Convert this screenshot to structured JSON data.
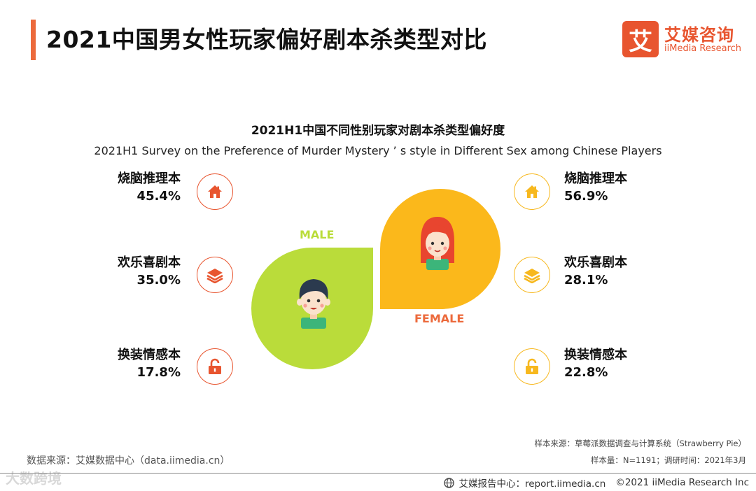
{
  "header": {
    "title": "2021中国男女性玩家偏好剧本杀类型对比"
  },
  "logo": {
    "mark": "艾",
    "name_cn": "艾媒咨询",
    "name_en": "iiMedia Research"
  },
  "chart_data": {
    "type": "pie",
    "title": "2021H1中国不同性别玩家对剧本杀类型偏好度",
    "subtitle": "2021H1 Survey on the Preference of Murder Mystery ’ s style in Different Sex among Chinese Players",
    "series": [
      {
        "name": "MALE",
        "color": "#badc3a",
        "items": [
          {
            "label": "烧脑推理本",
            "value": 45.4,
            "value_text": "45.4%",
            "icon": "house-icon"
          },
          {
            "label": "欢乐喜剧本",
            "value": 35.0,
            "value_text": "35.0%",
            "icon": "layers-icon"
          },
          {
            "label": "换装情感本",
            "value": 17.8,
            "value_text": "17.8%",
            "icon": "unlock-icon"
          }
        ]
      },
      {
        "name": "FEMALE",
        "color": "#fbb81b",
        "items": [
          {
            "label": "烧脑推理本",
            "value": 56.9,
            "value_text": "56.9%",
            "icon": "house-icon"
          },
          {
            "label": "欢乐喜剧本",
            "value": 28.1,
            "value_text": "28.1%",
            "icon": "layers-icon"
          },
          {
            "label": "换装情感本",
            "value": 22.8,
            "value_text": "22.8%",
            "icon": "unlock-icon"
          }
        ]
      }
    ]
  },
  "footer": {
    "source": "数据来源：艾媒数据中心（data.iimedia.cn）",
    "sample_source": "样本来源：草莓派数据调查与计算系统（Strawberry Pie）",
    "sample_size": "样本量：N=1191；调研时间：2021年3月",
    "report_center": "艾媒报告中心：report.iimedia.cn",
    "copyright": "©2021  iiMedia Research  Inc",
    "watermark": "大数跨境"
  },
  "colors": {
    "male_accent": "#e8552f",
    "female_accent": "#f7b81e",
    "male_label": "#badc3a",
    "female_label": "#ec6a3c",
    "title_bar": "#ec6a3c"
  }
}
